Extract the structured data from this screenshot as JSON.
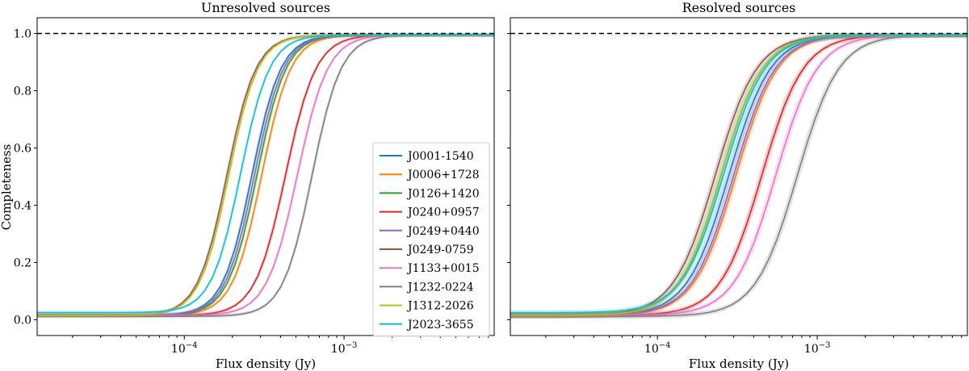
{
  "figure": {
    "ylabel": "Completeness",
    "xlabel": "Flux density (Jy)",
    "legend_position": "lower-right of left panel"
  },
  "chart_data": [
    {
      "type": "line",
      "title": "Unresolved sources",
      "xlabel": "Flux density (Jy)",
      "ylabel": "Completeness",
      "xscale": "log",
      "xlim": [
        1.2e-05,
        0.0087
      ],
      "ylim": [
        -0.055,
        1.055
      ],
      "yticks": [
        "0.0",
        "0.2",
        "0.4",
        "0.6",
        "0.8",
        "1.0"
      ],
      "xticks": [
        "10^-4",
        "10^-3"
      ],
      "reference_line": {
        "y": 1.0,
        "style": "dashed",
        "color": "#000000"
      },
      "grid": false,
      "curve_model": "logistic in log10(flux): completeness ≈ floor + (top-floor)/(1+10^(-(log10 S - log10 S50)/w))",
      "series": [
        {
          "name": "J0001-1540",
          "color": "#1f77b4",
          "s50": 0.000265,
          "width": 0.21,
          "floor": 0.015,
          "top": 0.995
        },
        {
          "name": "J0006+1728",
          "color": "#ff7f0e",
          "s50": 0.000305,
          "width": 0.21,
          "floor": 0.015,
          "top": 0.995
        },
        {
          "name": "J0126+1420",
          "color": "#2ca02c",
          "s50": 0.000285,
          "width": 0.21,
          "floor": 0.015,
          "top": 0.995
        },
        {
          "name": "J0240+0957",
          "color": "#d62728",
          "s50": 0.00043,
          "width": 0.22,
          "floor": 0.015,
          "top": 0.995
        },
        {
          "name": "J0249+0440",
          "color": "#9467bd",
          "s50": 0.000275,
          "width": 0.21,
          "floor": 0.015,
          "top": 0.995
        },
        {
          "name": "J0249-0759",
          "color": "#8c564b",
          "s50": 0.000185,
          "width": 0.21,
          "floor": 0.015,
          "top": 0.995
        },
        {
          "name": "J1133+0015",
          "color": "#e377c2",
          "s50": 0.00051,
          "width": 0.22,
          "floor": 0.015,
          "top": 0.995
        },
        {
          "name": "J1232-0224",
          "color": "#7f7f7f",
          "s50": 0.00063,
          "width": 0.21,
          "floor": 0.012,
          "top": 0.995
        },
        {
          "name": "J1312-2026",
          "color": "#bcbd22",
          "s50": 0.00019,
          "width": 0.21,
          "floor": 0.015,
          "top": 0.995
        },
        {
          "name": "J2023-3655",
          "color": "#17becf",
          "s50": 0.000225,
          "width": 0.21,
          "floor": 0.025,
          "top": 0.995
        }
      ]
    },
    {
      "type": "line",
      "title": "Resolved sources",
      "xlabel": "Flux density (Jy)",
      "ylabel": "",
      "xscale": "log",
      "xlim": [
        1.2e-05,
        0.0087
      ],
      "ylim": [
        -0.055,
        1.055
      ],
      "yticks": [
        "0.0",
        "0.2",
        "0.4",
        "0.6",
        "0.8",
        "1.0"
      ],
      "xticks": [
        "10^-4",
        "10^-3"
      ],
      "reference_line": {
        "y": 1.0,
        "style": "dashed",
        "color": "#000000"
      },
      "grid": false,
      "curve_model": "logistic in log10(flux)",
      "series": [
        {
          "name": "J0001-1540",
          "color": "#1f77b4",
          "s50": 0.00028,
          "width": 0.3,
          "floor": 0.015,
          "top": 0.995
        },
        {
          "name": "J0006+1728",
          "color": "#ff7f0e",
          "s50": 0.00031,
          "width": 0.3,
          "floor": 0.015,
          "top": 0.995
        },
        {
          "name": "J0126+1420",
          "color": "#2ca02c",
          "s50": 0.00025,
          "width": 0.3,
          "floor": 0.015,
          "top": 0.995
        },
        {
          "name": "J0240+0957",
          "color": "#d62728",
          "s50": 0.00045,
          "width": 0.3,
          "floor": 0.015,
          "top": 0.995
        },
        {
          "name": "J0249+0440",
          "color": "#9467bd",
          "s50": 0.0003,
          "width": 0.3,
          "floor": 0.015,
          "top": 0.995
        },
        {
          "name": "J0249-0759",
          "color": "#8c564b",
          "s50": 0.00023,
          "width": 0.3,
          "floor": 0.015,
          "top": 0.995
        },
        {
          "name": "J1133+0015",
          "color": "#e377c2",
          "s50": 0.00055,
          "width": 0.3,
          "floor": 0.015,
          "top": 0.995
        },
        {
          "name": "J1232-0224",
          "color": "#7f7f7f",
          "s50": 0.00075,
          "width": 0.3,
          "floor": 0.012,
          "top": 0.995
        },
        {
          "name": "J1312-2026",
          "color": "#bcbd22",
          "s50": 0.00025,
          "width": 0.3,
          "floor": 0.015,
          "top": 0.995
        },
        {
          "name": "J2023-3655",
          "color": "#17becf",
          "s50": 0.00026,
          "width": 0.3,
          "floor": 0.025,
          "top": 0.995
        }
      ]
    }
  ]
}
